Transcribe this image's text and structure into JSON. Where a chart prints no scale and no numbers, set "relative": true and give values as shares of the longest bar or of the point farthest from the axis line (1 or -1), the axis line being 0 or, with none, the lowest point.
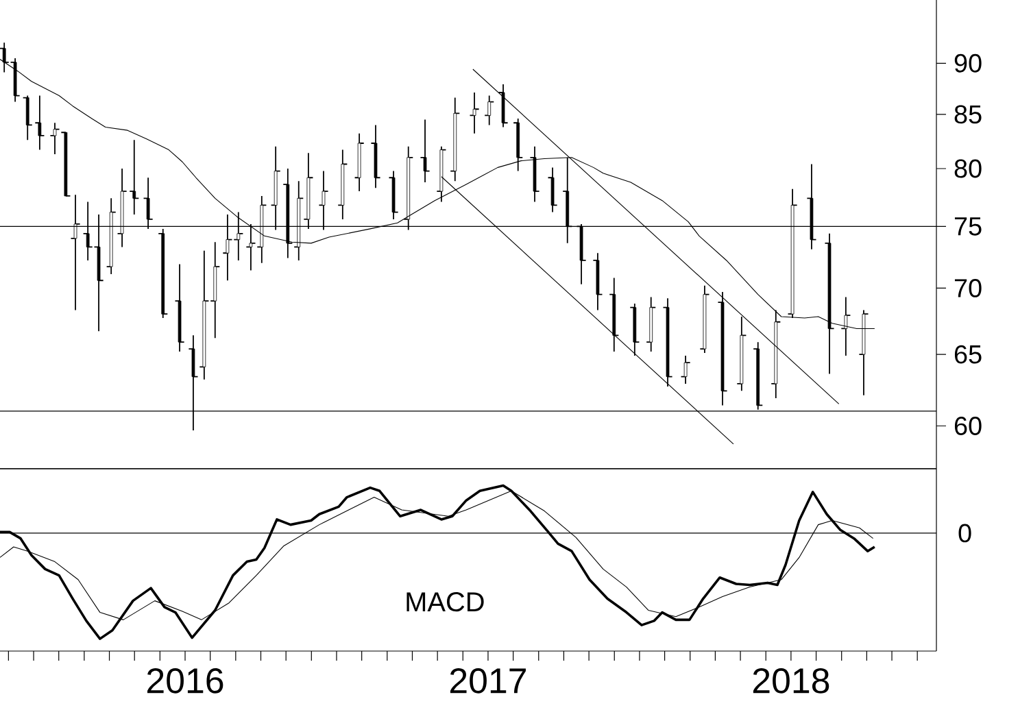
{
  "chart_data": [
    {
      "type": "candlestick",
      "color": "#000000",
      "log": "y",
      "tick_labels": "y",
      "xlim": [
        2015.389,
        2018.48
      ],
      "ylim": [
        57.2,
        96.6
      ],
      "yticks": [
        60,
        65,
        70,
        75,
        80,
        85,
        90
      ],
      "x": [
        2015.403,
        2015.439,
        2015.48,
        2015.52,
        2015.57,
        2015.606,
        2015.638,
        2015.679,
        2015.715,
        2015.756,
        2015.792,
        2015.832,
        2015.878,
        2015.927,
        2015.982,
        2016.027,
        2016.063,
        2016.099,
        2016.14,
        2016.176,
        2016.217,
        2016.253,
        2016.299,
        2016.339,
        2016.375,
        2016.407,
        2016.457,
        2016.52,
        2016.575,
        2016.629,
        2016.688,
        2016.737,
        2016.792,
        2016.846,
        2016.891,
        2016.955,
        2017.004,
        2017.05,
        2017.099,
        2017.154,
        2017.213,
        2017.262,
        2017.308,
        2017.362,
        2017.416,
        2017.484,
        2017.538,
        2017.593,
        2017.652,
        2017.715,
        2017.774,
        2017.837,
        2017.891,
        2017.95,
        2018.005,
        2018.068,
        2018.127,
        2018.181,
        2018.24
      ],
      "ohlc": [
        [
          91.5,
          92.1,
          89.1,
          90.1
        ],
        [
          90.1,
          90.5,
          86.2,
          86.8
        ],
        [
          86.6,
          86.8,
          82.6,
          84.0
        ],
        [
          84.2,
          86.8,
          81.7,
          83.0
        ],
        [
          83.0,
          84.2,
          81.3,
          83.6
        ],
        [
          83.3,
          83.3,
          77.6,
          77.6
        ],
        [
          74.0,
          77.7,
          68.3,
          75.2
        ],
        [
          74.4,
          77.1,
          72.2,
          73.3
        ],
        [
          73.3,
          76.0,
          66.7,
          70.6
        ],
        [
          71.7,
          77.4,
          71.1,
          76.2
        ],
        [
          74.4,
          80.0,
          73.3,
          78.0
        ],
        [
          78.0,
          82.6,
          76.0,
          77.4
        ],
        [
          77.4,
          79.2,
          74.8,
          75.6
        ],
        [
          74.4,
          74.8,
          67.7,
          68.0
        ],
        [
          69.0,
          71.9,
          65.2,
          65.9
        ],
        [
          65.4,
          66.4,
          59.7,
          63.4
        ],
        [
          64.1,
          73.0,
          63.2,
          69.0
        ],
        [
          69.0,
          73.7,
          66.2,
          71.7
        ],
        [
          72.8,
          76.0,
          70.6,
          73.9
        ],
        [
          73.9,
          76.2,
          72.2,
          74.4
        ],
        [
          73.3,
          75.2,
          71.4,
          73.6
        ],
        [
          73.3,
          77.6,
          72.0,
          76.8
        ],
        [
          76.8,
          82.0,
          74.7,
          79.8
        ],
        [
          78.6,
          80.0,
          72.4,
          73.6
        ],
        [
          73.3,
          78.9,
          72.2,
          77.4
        ],
        [
          75.6,
          81.4,
          74.8,
          79.2
        ],
        [
          76.8,
          79.8,
          74.7,
          78.0
        ],
        [
          76.8,
          81.7,
          75.6,
          80.4
        ],
        [
          79.2,
          83.2,
          78.0,
          82.3
        ],
        [
          82.3,
          84.0,
          78.3,
          79.2
        ],
        [
          79.2,
          79.8,
          75.6,
          76.2
        ],
        [
          75.6,
          82.0,
          74.7,
          81.0
        ],
        [
          81.0,
          84.5,
          78.8,
          79.8
        ],
        [
          78.0,
          82.0,
          77.1,
          81.7
        ],
        [
          79.8,
          86.6,
          78.9,
          85.1
        ],
        [
          84.9,
          87.1,
          83.2,
          85.5
        ],
        [
          84.9,
          86.8,
          84.0,
          86.2
        ],
        [
          87.1,
          87.9,
          83.8,
          84.2
        ],
        [
          84.2,
          84.6,
          79.8,
          81.0
        ],
        [
          81.0,
          82.0,
          77.1,
          78.0
        ],
        [
          79.2,
          80.1,
          76.2,
          76.8
        ],
        [
          78.0,
          81.0,
          73.6,
          75.0
        ],
        [
          75.0,
          75.2,
          70.3,
          72.2
        ],
        [
          72.2,
          72.8,
          68.3,
          69.5
        ],
        [
          69.5,
          70.8,
          65.2,
          66.4
        ],
        [
          68.5,
          68.8,
          64.9,
          65.9
        ],
        [
          65.9,
          69.3,
          65.2,
          68.5
        ],
        [
          68.5,
          69.2,
          62.7,
          63.4
        ],
        [
          63.4,
          64.9,
          62.9,
          64.4
        ],
        [
          65.4,
          70.2,
          65.1,
          69.5
        ],
        [
          68.9,
          69.7,
          61.4,
          62.4
        ],
        [
          62.9,
          67.8,
          62.4,
          66.4
        ],
        [
          65.4,
          65.9,
          61.1,
          61.4
        ],
        [
          62.9,
          68.3,
          61.9,
          67.4
        ],
        [
          68.0,
          78.2,
          67.7,
          76.8
        ],
        [
          77.4,
          80.4,
          73.1,
          73.9
        ],
        [
          73.6,
          74.4,
          63.6,
          66.9
        ],
        [
          66.9,
          69.3,
          64.9,
          67.9
        ],
        [
          65.0,
          68.3,
          62.1,
          68.0
        ]
      ],
      "series": [
        {
          "type": "line",
          "color": "#000000",
          "x": [
            2015.389,
            2015.448,
            2015.493,
            2015.584,
            2015.629,
            2015.692,
            2015.737,
            2015.81,
            2015.873,
            2015.946,
            2015.991,
            2016.036,
            2016.099,
            2016.172,
            2016.262,
            2016.353,
            2016.416,
            2016.475,
            2016.611,
            2016.701,
            2016.747,
            2016.824,
            2016.927,
            2017.032,
            2017.109,
            2017.186,
            2017.276,
            2017.348,
            2017.38,
            2017.471,
            2017.575,
            2017.661,
            2017.697,
            2017.787,
            2017.891,
            2017.968,
            2018.045,
            2018.09,
            2018.136,
            2018.217,
            2018.276
          ],
          "values": [
            90.4,
            89.2,
            88.2,
            86.8,
            85.8,
            84.6,
            83.8,
            83.5,
            82.7,
            81.7,
            80.6,
            79.2,
            77.4,
            75.8,
            74.2,
            73.7,
            73.6,
            74.1,
            74.8,
            75.3,
            76.0,
            77.2,
            78.6,
            80.1,
            80.7,
            80.9,
            81.0,
            80.1,
            79.6,
            78.8,
            77.2,
            75.4,
            74.2,
            72.2,
            69.5,
            67.8,
            67.7,
            67.8,
            67.3,
            66.9,
            66.9
          ]
        },
        {
          "type": "line",
          "color": "#000000",
          "x": [
            2016.95,
            2018.158
          ],
          "values": [
            89.4,
            61.5
          ]
        },
        {
          "type": "line",
          "color": "#000000",
          "x": [
            2016.846,
            2017.81
          ],
          "values": [
            79.3,
            58.8
          ]
        }
      ],
      "ref_lines": [
        {
          "axis": "y",
          "value": 75
        },
        {
          "axis": "y",
          "value": 61
        }
      ]
    },
    {
      "type": "line",
      "relative": true,
      "tick_labels": "x",
      "xlim": [
        2015.389,
        2018.48
      ],
      "xticks": [
        {
          "value": 2015.417,
          "label": null
        },
        {
          "value": 2015.5,
          "label": null
        },
        {
          "value": 2015.583,
          "label": null
        },
        {
          "value": 2015.667,
          "label": null
        },
        {
          "value": 2015.75,
          "label": null
        },
        {
          "value": 2015.833,
          "label": null
        },
        {
          "value": 2015.917,
          "label": null
        },
        2016,
        {
          "value": 2016.083,
          "label": null
        },
        {
          "value": 2016.167,
          "label": null
        },
        {
          "value": 2016.25,
          "label": null
        },
        {
          "value": 2016.333,
          "label": null
        },
        {
          "value": 2016.417,
          "label": null
        },
        {
          "value": 2016.5,
          "label": null
        },
        {
          "value": 2016.583,
          "label": null
        },
        {
          "value": 2016.667,
          "label": null
        },
        {
          "value": 2016.75,
          "label": null
        },
        {
          "value": 2016.833,
          "label": null
        },
        {
          "value": 2016.917,
          "label": null
        },
        2017,
        {
          "value": 2017.083,
          "label": null
        },
        {
          "value": 2017.167,
          "label": null
        },
        {
          "value": 2017.25,
          "label": null
        },
        {
          "value": 2017.333,
          "label": null
        },
        {
          "value": 2017.417,
          "label": null
        },
        {
          "value": 2017.5,
          "label": null
        },
        {
          "value": 2017.583,
          "label": null
        },
        {
          "value": 2017.667,
          "label": null
        },
        {
          "value": 2017.75,
          "label": null
        },
        {
          "value": 2017.833,
          "label": null
        },
        {
          "value": 2017.917,
          "label": null
        },
        2018,
        {
          "value": 2018.083,
          "label": null
        },
        {
          "value": 2018.167,
          "label": null
        },
        {
          "value": 2018.25,
          "label": null
        },
        {
          "value": 2018.333,
          "label": null
        },
        {
          "value": 2018.417,
          "label": null
        }
      ],
      "series": [
        {
          "color": "#000000",
          "x": [
            2015.389,
            2015.421,
            2015.457,
            2015.493,
            2015.538,
            2015.584,
            2015.629,
            2015.674,
            2015.719,
            2015.76,
            2015.828,
            2015.887,
            2015.932,
            2015.968,
            2016.023,
            2016.099,
            2016.158,
            2016.204,
            2016.235,
            2016.262,
            2016.303,
            2016.348,
            2016.416,
            2016.443,
            2016.507,
            2016.534,
            2016.611,
            2016.642,
            2016.71,
            2016.778,
            2016.846,
            2016.882,
            2016.928,
            2016.973,
            2017.05,
            2017.077,
            2017.14,
            2017.199,
            2017.231,
            2017.276,
            2017.335,
            2017.394,
            2017.457,
            2017.507,
            2017.548,
            2017.575,
            2017.62,
            2017.665,
            2017.71,
            2017.765,
            2017.819,
            2017.864,
            2017.923,
            2017.955,
            2017.982,
            2018.027,
            2018.072,
            2018.118,
            2018.163,
            2018.208,
            2018.253,
            2018.276
          ],
          "values": [
            0.01,
            0.01,
            -0.05,
            -0.21,
            -0.34,
            -0.4,
            -0.62,
            -0.83,
            -1.0,
            -0.92,
            -0.64,
            -0.52,
            -0.7,
            -0.75,
            -0.99,
            -0.73,
            -0.4,
            -0.27,
            -0.25,
            -0.14,
            0.13,
            0.08,
            0.12,
            0.18,
            0.25,
            0.34,
            0.43,
            0.4,
            0.16,
            0.22,
            0.13,
            0.16,
            0.31,
            0.4,
            0.45,
            0.4,
            0.21,
            0.01,
            -0.1,
            -0.17,
            -0.44,
            -0.62,
            -0.75,
            -0.87,
            -0.83,
            -0.75,
            -0.82,
            -0.82,
            -0.62,
            -0.42,
            -0.48,
            -0.49,
            -0.47,
            -0.49,
            -0.3,
            0.12,
            0.39,
            0.18,
            0.03,
            -0.05,
            -0.17,
            -0.13
          ]
        },
        {
          "color": "#000000",
          "x": [
            2015.389,
            2015.434,
            2015.48,
            2015.57,
            2015.647,
            2015.719,
            2015.796,
            2015.9,
            2015.991,
            2016.054,
            2016.145,
            2016.235,
            2016.326,
            2016.443,
            2016.624,
            2016.715,
            2016.869,
            2016.928,
            2017.077,
            2017.186,
            2017.29,
            2017.38,
            2017.457,
            2017.529,
            2017.62,
            2017.697,
            2017.774,
            2017.864,
            2017.968,
            2018.027,
            2018.09,
            2018.136,
            2018.226,
            2018.271
          ],
          "values": [
            -0.23,
            -0.13,
            -0.17,
            -0.27,
            -0.44,
            -0.75,
            -0.82,
            -0.64,
            -0.74,
            -0.82,
            -0.66,
            -0.4,
            -0.12,
            0.08,
            0.34,
            0.22,
            0.16,
            0.22,
            0.4,
            0.21,
            -0.04,
            -0.34,
            -0.51,
            -0.73,
            -0.79,
            -0.7,
            -0.6,
            -0.51,
            -0.44,
            -0.23,
            0.08,
            0.12,
            0.05,
            -0.05
          ]
        }
      ],
      "ref_lines": [
        {
          "axis": "y",
          "value": 0,
          "label": "0"
        }
      ],
      "annotations": [
        "MACD"
      ]
    }
  ]
}
